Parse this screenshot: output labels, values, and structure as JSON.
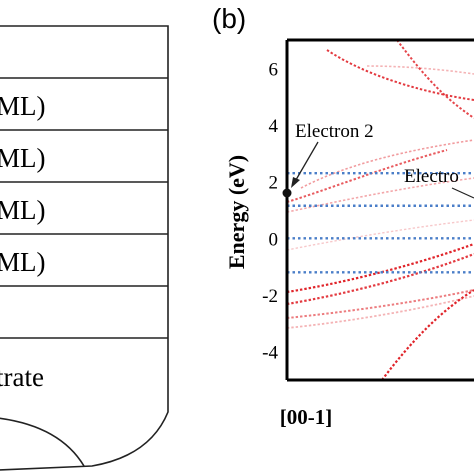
{
  "panel_a": {
    "layers": [
      {
        "label": ""
      },
      {
        "label": "ML)"
      },
      {
        "label": "ML)"
      },
      {
        "label": "ML)"
      },
      {
        "label": "ML)"
      },
      {
        "label": ""
      },
      {
        "label": "trate"
      }
    ]
  },
  "panel_b": {
    "panel_label": "(b)",
    "annotations": {
      "electron2": "Electron 2",
      "electron_partial": "Electro"
    }
  },
  "chart_data": {
    "type": "scatter",
    "title": "",
    "xlabel": "",
    "ylabel": "Energy (eV)",
    "x_tick_labels": [
      "[00-1]"
    ],
    "ylim": [
      -5,
      7
    ],
    "y_ticks": [
      -4,
      -2,
      0,
      2,
      4,
      6
    ],
    "grid": false,
    "reference_lines_energy_eV": [
      2.3,
      1.15,
      0,
      -1.2
    ],
    "reference_line_color": "#4a7ec8",
    "band_color": "#e0242a",
    "marked_point": {
      "label": "Electron 2",
      "energy_eV": 1.6
    }
  }
}
